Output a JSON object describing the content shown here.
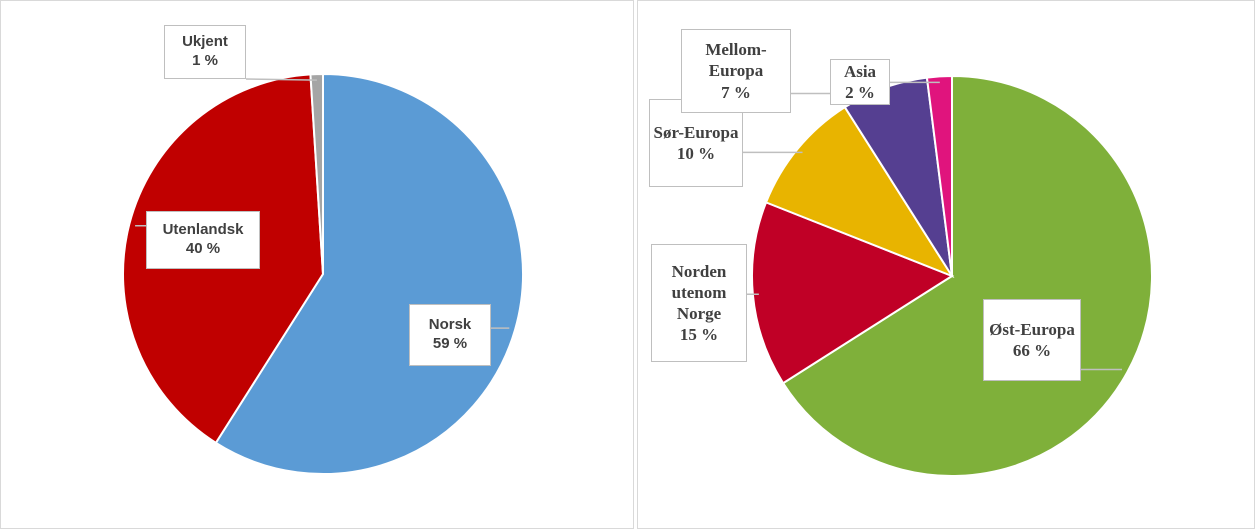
{
  "chart_data": [
    {
      "type": "pie",
      "categories": [
        "Norsk",
        "Utenlandsk",
        "Ukjent"
      ],
      "values": [
        59,
        40,
        1
      ],
      "value_labels": [
        "59 %",
        "40 %",
        "1 %"
      ],
      "colors": [
        "#5B9BD5",
        "#C00000",
        "#A5A5A5"
      ]
    },
    {
      "type": "pie",
      "categories": [
        "Øst-Europa",
        "Norden utenom Norge",
        "Sør-Europa",
        "Mellom-Europa",
        "Asia"
      ],
      "values": [
        66,
        15,
        10,
        7,
        2
      ],
      "value_labels": [
        "66 %",
        "15 %",
        "10 %",
        "7 %",
        "2 %"
      ],
      "colors": [
        "#7FB03A",
        "#C00026",
        "#E8B400",
        "#553F91",
        "#E0147D"
      ]
    }
  ]
}
